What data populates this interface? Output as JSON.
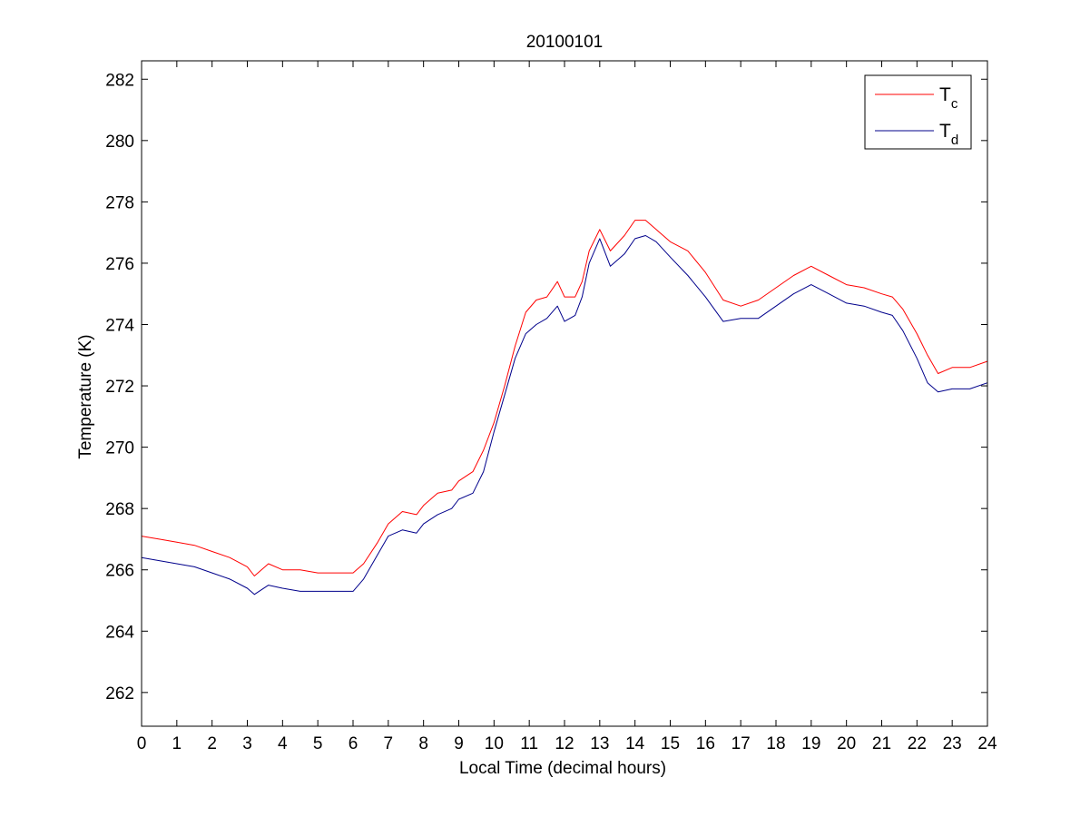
{
  "chart_data": {
    "type": "line",
    "title": "20100101",
    "xlabel": "Local Time (decimal hours)",
    "ylabel": "Temperature (K)",
    "xlim": [
      0,
      24
    ],
    "ylim": [
      260.9,
      282.6
    ],
    "xticks": [
      0,
      1,
      2,
      3,
      4,
      5,
      6,
      7,
      8,
      9,
      10,
      11,
      12,
      13,
      14,
      15,
      16,
      17,
      18,
      19,
      20,
      21,
      22,
      23,
      24
    ],
    "yticks": [
      262,
      264,
      266,
      268,
      270,
      272,
      274,
      276,
      278,
      280,
      282
    ],
    "grid": false,
    "legend_position": "top-right",
    "series": [
      {
        "name": "T",
        "subscript": "c",
        "color": "#ff0000",
        "x": [
          0,
          0.5,
          1,
          1.5,
          2,
          2.5,
          3,
          3.2,
          3.6,
          4,
          4.5,
          5,
          5.5,
          6,
          6.3,
          6.7,
          7,
          7.4,
          7.8,
          8,
          8.4,
          8.8,
          9,
          9.4,
          9.7,
          10,
          10.3,
          10.6,
          10.9,
          11.2,
          11.5,
          11.8,
          12,
          12.3,
          12.5,
          12.7,
          13,
          13.3,
          13.7,
          14,
          14.3,
          14.6,
          15,
          15.5,
          16,
          16.5,
          17,
          17.5,
          18,
          18.5,
          19,
          19.5,
          20,
          20.5,
          21,
          21.3,
          21.6,
          22,
          22.3,
          22.6,
          23,
          23.5,
          24
        ],
        "y": [
          267.1,
          267.0,
          266.9,
          266.8,
          266.6,
          266.4,
          266.1,
          265.8,
          266.2,
          266.0,
          266.0,
          265.9,
          265.9,
          265.9,
          266.2,
          266.9,
          267.5,
          267.9,
          267.8,
          268.1,
          268.5,
          268.6,
          268.9,
          269.2,
          269.9,
          270.8,
          272.0,
          273.3,
          274.4,
          274.8,
          274.9,
          275.4,
          274.9,
          274.9,
          275.4,
          276.4,
          277.1,
          276.4,
          276.9,
          277.4,
          277.4,
          277.1,
          276.7,
          276.4,
          275.7,
          274.8,
          274.6,
          274.8,
          275.2,
          275.6,
          275.9,
          275.6,
          275.3,
          275.2,
          275.0,
          274.9,
          274.5,
          273.7,
          273.0,
          272.4,
          272.6,
          272.6,
          272.8
        ]
      },
      {
        "name": "T",
        "subscript": "d",
        "color": "#00008b",
        "x": [
          0,
          0.5,
          1,
          1.5,
          2,
          2.5,
          3,
          3.2,
          3.6,
          4,
          4.5,
          5,
          5.5,
          6,
          6.3,
          6.7,
          7,
          7.4,
          7.8,
          8,
          8.4,
          8.8,
          9,
          9.4,
          9.7,
          10,
          10.3,
          10.6,
          10.9,
          11.2,
          11.5,
          11.8,
          12,
          12.3,
          12.5,
          12.7,
          13,
          13.3,
          13.7,
          14,
          14.3,
          14.6,
          15,
          15.5,
          16,
          16.5,
          17,
          17.5,
          18,
          18.5,
          19,
          19.5,
          20,
          20.5,
          21,
          21.3,
          21.6,
          22,
          22.3,
          22.6,
          23,
          23.5,
          24
        ],
        "y": [
          266.4,
          266.3,
          266.2,
          266.1,
          265.9,
          265.7,
          265.4,
          265.2,
          265.5,
          265.4,
          265.3,
          265.3,
          265.3,
          265.3,
          265.7,
          266.5,
          267.1,
          267.3,
          267.2,
          267.5,
          267.8,
          268.0,
          268.3,
          268.5,
          269.2,
          270.5,
          271.7,
          272.9,
          273.7,
          274.0,
          274.2,
          274.6,
          274.1,
          274.3,
          274.9,
          276.0,
          276.8,
          275.9,
          276.3,
          276.8,
          276.9,
          276.7,
          276.2,
          275.6,
          274.9,
          274.1,
          274.2,
          274.2,
          274.6,
          275.0,
          275.3,
          275.0,
          274.7,
          274.6,
          274.4,
          274.3,
          273.8,
          272.9,
          272.1,
          271.8,
          271.9,
          271.9,
          272.1
        ]
      }
    ]
  }
}
